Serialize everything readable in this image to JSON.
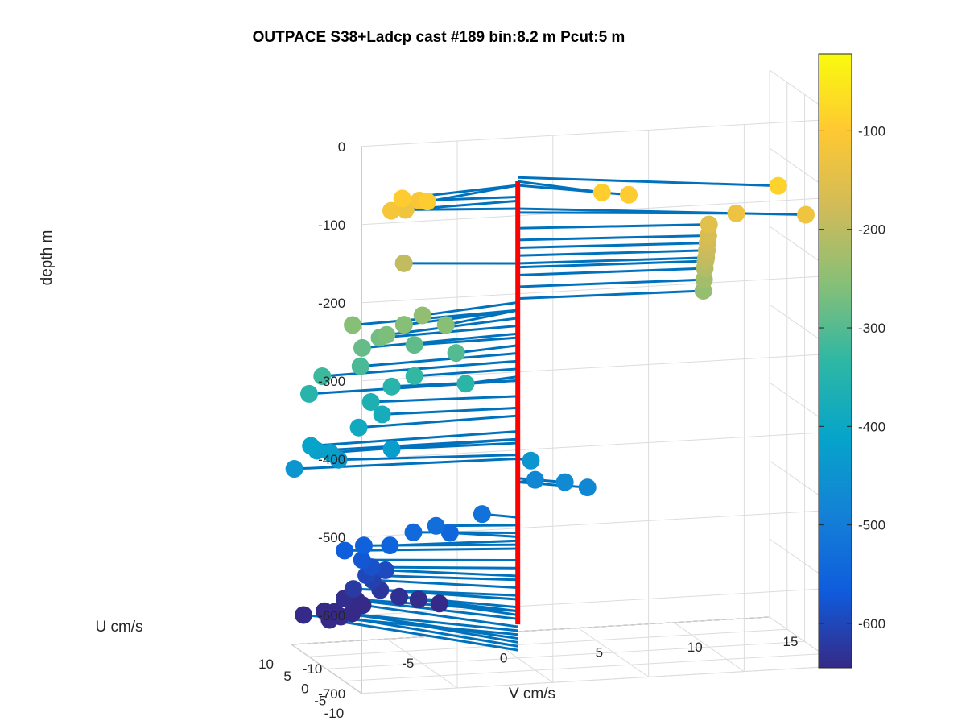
{
  "chart_data": {
    "type": "scatter",
    "title": "OUTPACE S38+Ladcp cast #189 bin:8.2 m  Pcut:5 m",
    "xlabel": "V cm/s",
    "ylabel": "U cm/s",
    "zlabel": "depth m",
    "xlim": [
      -10,
      15
    ],
    "ylim": [
      -10,
      10
    ],
    "zlim": [
      -700,
      0
    ],
    "x_ticks": [
      "-10",
      "-5",
      "0",
      "5",
      "10",
      "15"
    ],
    "y_ticks": [
      "-10",
      "-5",
      "0",
      "5",
      "10"
    ],
    "z_ticks": [
      "0",
      "-100",
      "-200",
      "-300",
      "-400",
      "-500",
      "-600",
      "-700"
    ],
    "grid": true,
    "colormap": "parula",
    "colorbar": {
      "ticks": [
        "-100",
        "-200",
        "-300",
        "-400",
        "-500",
        "-600"
      ],
      "range": [
        -645,
        -22
      ]
    },
    "mast_color": "#ff0000",
    "stem_color": "#0072bd",
    "points": [
      {
        "depth": -95,
        "v": -6.5,
        "u": -2.5
      },
      {
        "depth": -95,
        "v": -5.5,
        "u": -4.2
      },
      {
        "depth": -115,
        "v": -6.8,
        "u": -1.0
      },
      {
        "depth": -110,
        "v": -5.0,
        "u": 0.8
      },
      {
        "depth": -125,
        "v": -5.5,
        "u": 2.0
      },
      {
        "depth": -90,
        "v": 3.3,
        "u": -6.0
      },
      {
        "depth": -95,
        "v": 4.7,
        "u": -6.0
      },
      {
        "depth": -85,
        "v": 12.0,
        "u": -8.8
      },
      {
        "depth": -125,
        "v": 13.5,
        "u": -8.5
      },
      {
        "depth": -130,
        "v": 10.5,
        "u": -5.0
      },
      {
        "depth": -150,
        "v": 9.5,
        "u": -2.7
      },
      {
        "depth": -165,
        "v": 9.5,
        "u": -2.5
      },
      {
        "depth": -175,
        "v": 9.5,
        "u": -2.3
      },
      {
        "depth": -185,
        "v": 9.5,
        "u": -2.1
      },
      {
        "depth": -195,
        "v": 9.5,
        "u": -1.9
      },
      {
        "depth": -200,
        "v": 9.5,
        "u": -1.7
      },
      {
        "depth": -210,
        "v": 9.5,
        "u": -1.5
      },
      {
        "depth": -225,
        "v": 9.5,
        "u": -1.3
      },
      {
        "depth": -240,
        "v": 9.5,
        "u": -1.1
      },
      {
        "depth": -195,
        "v": -5.5,
        "u": 2.5
      },
      {
        "depth": -255,
        "v": -9.0,
        "u": -2.0
      },
      {
        "depth": -255,
        "v": -6.5,
        "u": -3.0
      },
      {
        "depth": -245,
        "v": -5.5,
        "u": -2.8
      },
      {
        "depth": -255,
        "v": -4.5,
        "u": -4.0
      },
      {
        "depth": -265,
        "v": -7.5,
        "u": -3.5
      },
      {
        "depth": -275,
        "v": -7.5,
        "u": -1.5
      },
      {
        "depth": -285,
        "v": -8.5,
        "u": -2.0
      },
      {
        "depth": -290,
        "v": -5.5,
        "u": -0.5
      },
      {
        "depth": -300,
        "v": -3.5,
        "u": -1.5
      },
      {
        "depth": -310,
        "v": -8.5,
        "u": -1.5
      },
      {
        "depth": -320,
        "v": -10.5,
        "u": -1.5
      },
      {
        "depth": -345,
        "v": -11.0,
        "u": -0.5
      },
      {
        "depth": -330,
        "v": -5.5,
        "u": -0.5
      },
      {
        "depth": -340,
        "v": -3.0,
        "u": -1.5
      },
      {
        "depth": -345,
        "v": -6.5,
        "u": 0.5
      },
      {
        "depth": -365,
        "v": -7.5,
        "u": 1.0
      },
      {
        "depth": -380,
        "v": -7.0,
        "u": 0.5
      },
      {
        "depth": -390,
        "v": -8.5,
        "u": -1.0
      },
      {
        "depth": -410,
        "v": -11.0,
        "u": -1.0
      },
      {
        "depth": -420,
        "v": -10.5,
        "u": 0.0
      },
      {
        "depth": -420,
        "v": -10.0,
        "u": -1.0
      },
      {
        "depth": -425,
        "v": -6.5,
        "u": 0.5
      },
      {
        "depth": -440,
        "v": -9.0,
        "u": 2.0
      },
      {
        "depth": -445,
        "v": -11.5,
        "u": 1.0
      },
      {
        "depth": -445,
        "v": 0.5,
        "u": -1.0
      },
      {
        "depth": -470,
        "v": 2.0,
        "u": -2.5
      },
      {
        "depth": -475,
        "v": 3.0,
        "u": -3.5
      },
      {
        "depth": -475,
        "v": 1.0,
        "u": 0.5
      },
      {
        "depth": -520,
        "v": -1.5,
        "u": 2.0
      },
      {
        "depth": -530,
        "v": -4.0,
        "u": 1.5
      },
      {
        "depth": -540,
        "v": -5.0,
        "u": 2.5
      },
      {
        "depth": -545,
        "v": -3.0,
        "u": 3.0
      },
      {
        "depth": -550,
        "v": -6.5,
        "u": 1.0
      },
      {
        "depth": -555,
        "v": -7.5,
        "u": 3.0
      },
      {
        "depth": -560,
        "v": -8.5,
        "u": 3.0
      },
      {
        "depth": -575,
        "v": -7.5,
        "u": 3.5
      },
      {
        "depth": -585,
        "v": -7.0,
        "u": 3.5
      },
      {
        "depth": -595,
        "v": -6.0,
        "u": 5.0
      },
      {
        "depth": -600,
        "v": -7.0,
        "u": 5.0
      },
      {
        "depth": -610,
        "v": -6.5,
        "u": 6.0
      },
      {
        "depth": -620,
        "v": -7.5,
        "u": 6.0
      },
      {
        "depth": -625,
        "v": -6.0,
        "u": 6.5
      },
      {
        "depth": -635,
        "v": -5.0,
        "u": 6.5
      },
      {
        "depth": -640,
        "v": -4.0,
        "u": 6.5
      },
      {
        "depth": -645,
        "v": -3.0,
        "u": 6.0
      },
      {
        "depth": -640,
        "v": -7.5,
        "u": 8.5
      },
      {
        "depth": -650,
        "v": -6.5,
        "u": 10.5
      },
      {
        "depth": -660,
        "v": -6.0,
        "u": 11.5
      },
      {
        "depth": -665,
        "v": -8.0,
        "u": 11.5
      },
      {
        "depth": -670,
        "v": -9.0,
        "u": 12.0
      },
      {
        "depth": -675,
        "v": -7.0,
        "u": 14.0
      },
      {
        "depth": -680,
        "v": -6.0,
        "u": 14.5
      },
      {
        "depth": -685,
        "v": -6.5,
        "u": 15.0
      },
      {
        "depth": -690,
        "v": -7.0,
        "u": 15.5
      }
    ]
  }
}
